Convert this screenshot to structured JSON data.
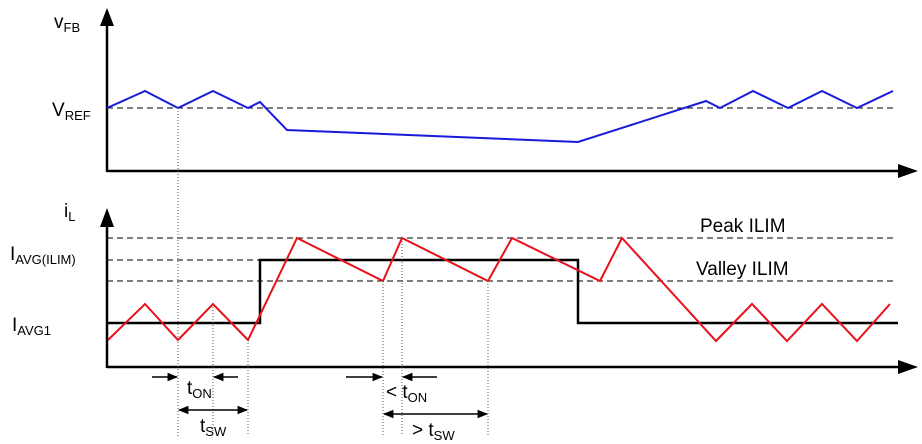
{
  "colors": {
    "feedback_trace": "#1a1adb",
    "inductor_current_trace": "#e8101a",
    "average_current_trace": "#000000",
    "axis": "#000000"
  },
  "top_plot": {
    "y_axis_label": {
      "main": "v",
      "sub": "FB"
    },
    "reference_label": {
      "main": "V",
      "sub": "REF"
    }
  },
  "bottom_plot": {
    "y_axis_label": {
      "main": "i",
      "sub": "L"
    },
    "avg_ilim_label": {
      "main": "I",
      "sub": "AVG(ILIM)"
    },
    "avg1_label": {
      "main": "I",
      "sub": "AVG1"
    },
    "peak_ilim_label": "Peak ILIM",
    "valley_ilim_label": "Valley ILIM"
  },
  "timing_annotations": {
    "t_on": {
      "main": "t",
      "sub": "ON"
    },
    "t_sw": {
      "main": "t",
      "sub": "SW"
    },
    "lt_t_on": {
      "prefix": "< ",
      "main": "t",
      "sub": "ON"
    },
    "gt_t_sw": {
      "prefix": "> ",
      "main": "t",
      "sub": "SW"
    }
  },
  "icons": [
    "up-arrow-icon",
    "right-arrow-icon"
  ]
}
